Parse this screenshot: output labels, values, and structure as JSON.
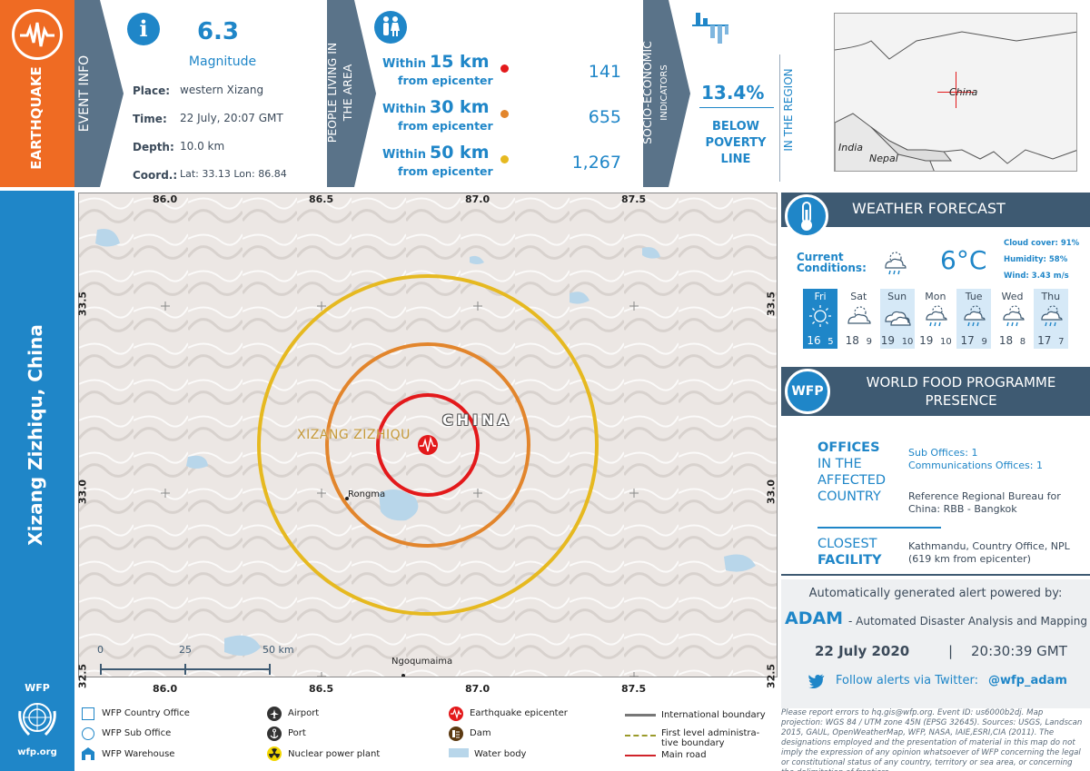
{
  "sidebar": {
    "event_type": "EARTHQUAKE",
    "location_title": "Xizang Zizhiqu, China",
    "org_label": "WFP",
    "org_url": "wfp.org"
  },
  "event_info": {
    "section_label": "EVENT INFO",
    "magnitude_value": "6.3",
    "magnitude_label": "Magnitude",
    "place_label": "Place:",
    "place_value": "western Xizang",
    "time_label": "Time:",
    "time_value": "22 July, 20:07 GMT",
    "depth_label": "Depth:",
    "depth_value": "10.0 km",
    "coord_label": "Coord.:",
    "coord_value": "Lat: 33.13  Lon: 86.84"
  },
  "population": {
    "section_label_1": "PEOPLE LIVING IN",
    "section_label_2": "THE AREA",
    "within_label": "Within",
    "from_label": "from epicenter",
    "rings": [
      {
        "distance": "15 km",
        "count": "141",
        "color": "#e3191b"
      },
      {
        "distance": "30 km",
        "count": "655",
        "color": "#e2852c"
      },
      {
        "distance": "50 km",
        "count": "1,267",
        "color": "#e6b920"
      }
    ]
  },
  "socio": {
    "section_label_1": "SOCIO-ECONOMIC",
    "section_label_2": "INDICATORS",
    "poverty_value": "13.4%",
    "poverty_label_1": "BELOW",
    "poverty_label_2": "POVERTY",
    "poverty_label_3": "LINE",
    "region_label": "IN THE REGION"
  },
  "inset_map": {
    "labels": {
      "china": "China",
      "india": "India",
      "nepal": "Nepal"
    }
  },
  "map": {
    "top_ticks": [
      "86.0",
      "86.5",
      "87.0",
      "87.5"
    ],
    "bottom_ticks": [
      "86.0",
      "86.5",
      "87.0",
      "87.5"
    ],
    "left_ticks": [
      "33.5",
      "33.0",
      "32.5"
    ],
    "right_ticks": [
      "33.5",
      "33.0",
      "32.5"
    ],
    "region_label": "XIZANG ZIZHIQU",
    "country_label": "CHINA",
    "place_rongma": "Rongma",
    "place_ngoqumaima": "Ngoqumaima",
    "scale": [
      "0",
      "25",
      "50 km"
    ]
  },
  "weather": {
    "title": "WEATHER FORECAST",
    "current_label_1": "Current",
    "current_label_2": "Conditions:",
    "current_temp": "6°C",
    "cloud_cover": "Cloud cover: 91%",
    "humidity": "Humidity: 58%",
    "wind": "Wind: 3.43 m/s",
    "days": [
      {
        "name": "Fri",
        "high": "16",
        "low": "5",
        "icon": "sun-icon"
      },
      {
        "name": "Sat",
        "high": "18",
        "low": "9",
        "icon": "partly-cloudy-icon"
      },
      {
        "name": "Sun",
        "high": "19",
        "low": "10",
        "icon": "cloud-icon"
      },
      {
        "name": "Mon",
        "high": "19",
        "low": "10",
        "icon": "rain-icon"
      },
      {
        "name": "Tue",
        "high": "17",
        "low": "9",
        "icon": "rain-icon"
      },
      {
        "name": "Wed",
        "high": "18",
        "low": "8",
        "icon": "rain-icon"
      },
      {
        "name": "Thu",
        "high": "17",
        "low": "7",
        "icon": "rain-icon"
      }
    ]
  },
  "wfp_presence": {
    "badge": "WFP",
    "title_1": "WORLD FOOD PROGRAMME",
    "title_2": "PRESENCE",
    "offices_label_1": "OFFICES",
    "offices_label_2": "IN THE",
    "offices_label_3": "AFFECTED",
    "offices_label_4": "COUNTRY",
    "sub_offices": "Sub Offices: 1",
    "comm_offices": "Communications Offices: 1",
    "regional_1": "Reference Regional Bureau for",
    "regional_2": "China: RBB - Bangkok",
    "closest_label_1": "CLOSEST",
    "closest_label_2": "FACILITY",
    "closest_1": "Kathmandu, Country Office, NPL",
    "closest_2": "(619 km from epicenter)"
  },
  "alert": {
    "powered_by": "Automatically generated alert powered by:",
    "adam": "ADAM",
    "adam_desc": "- Automated Disaster Analysis and Mapping",
    "date": "22 July 2020",
    "separator": "|",
    "time": "20:30:39 GMT",
    "twitter_text": "Follow alerts via Twitter:",
    "twitter_handle": "@wfp_adam"
  },
  "legend": {
    "country_office": "WFP Country Office",
    "sub_office": "WFP Sub Office",
    "warehouse": "WFP Warehouse",
    "airport": "Airport",
    "port": "Port",
    "nuclear": "Nuclear power plant",
    "epicenter": "Earthquake epicenter",
    "dam": "Dam",
    "water": "Water body",
    "intl_boundary": "International boundary",
    "admin_boundary_1": "First level administra-",
    "admin_boundary_2": "tive boundary",
    "main_road": "Main road"
  },
  "disclaimer": "Please report errors to hq.gis@wfp.org. Event ID: us6000b2dj. Map projection: WGS 84 / UTM zone 45N (EPSG 32645). Sources: USGS, Landscan 2015, GAUL, OpenWeatherMap, WFP, NASA, IAIE,ESRI,CIA (2011). The designations employed and the presentation of material in this map do not imply the expression of any opinion whatsoever of WFP concerning the legal or constitutional status of any country, territory or sea area, or concerning the delimitation of frontiers."
}
